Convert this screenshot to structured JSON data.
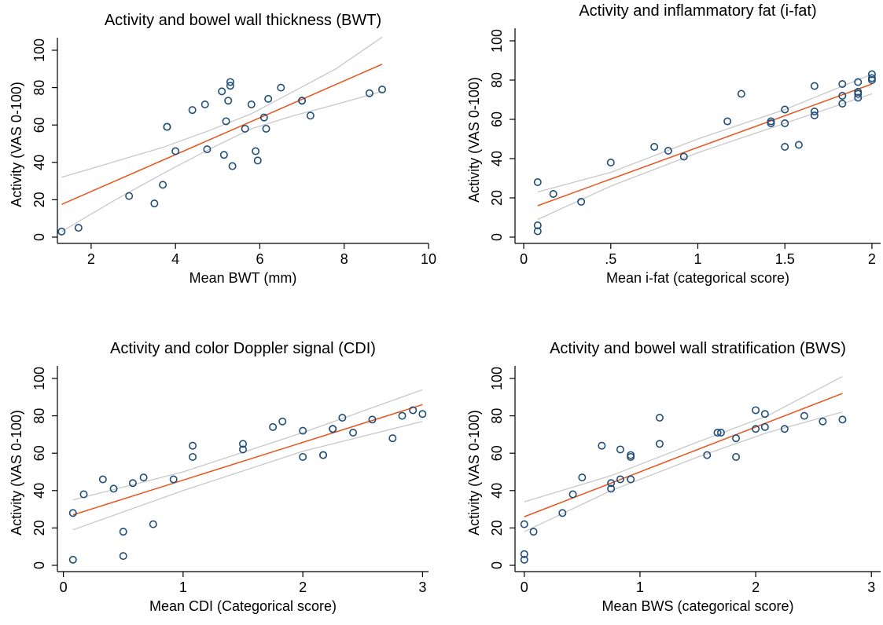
{
  "chart_data": [
    {
      "type": "scatter",
      "title": "Activity and bowel wall thickness (BWT)",
      "xlabel": "Mean BWT (mm)",
      "ylabel": "Activity (VAS 0-100)",
      "xlim": [
        1.2,
        10
      ],
      "ylim": [
        0,
        100
      ],
      "xticks": [
        2,
        4,
        6,
        8,
        10
      ],
      "xtick_labels": [
        "2",
        "4",
        "6",
        "8",
        "10"
      ],
      "yticks": [
        0,
        20,
        40,
        60,
        80,
        100
      ],
      "yticks_labels": [
        "0",
        "20",
        "40",
        "60",
        "80",
        "100"
      ],
      "grid": false,
      "points": [
        [
          1.3,
          3
        ],
        [
          1.7,
          5
        ],
        [
          2.9,
          22
        ],
        [
          3.5,
          18
        ],
        [
          3.7,
          28
        ],
        [
          3.8,
          59
        ],
        [
          3.8,
          59
        ],
        [
          4.0,
          46
        ],
        [
          4.4,
          68
        ],
        [
          4.7,
          71
        ],
        [
          4.75,
          47
        ],
        [
          5.1,
          78
        ],
        [
          5.15,
          44
        ],
        [
          5.2,
          62
        ],
        [
          5.25,
          73
        ],
        [
          5.3,
          81
        ],
        [
          5.3,
          83
        ],
        [
          5.35,
          38
        ],
        [
          5.65,
          58
        ],
        [
          5.8,
          71
        ],
        [
          5.9,
          46
        ],
        [
          5.95,
          41
        ],
        [
          6.1,
          64
        ],
        [
          6.15,
          58
        ],
        [
          6.2,
          74
        ],
        [
          6.5,
          80
        ],
        [
          7.0,
          73
        ],
        [
          7.0,
          73
        ],
        [
          7.2,
          65
        ],
        [
          8.6,
          77
        ],
        [
          8.9,
          79
        ]
      ],
      "fit_line": [
        [
          1.3,
          17.5
        ],
        [
          8.9,
          92.5
        ]
      ],
      "ci_upper": [
        [
          1.3,
          32
        ],
        [
          2.5,
          40
        ],
        [
          3.7,
          48
        ],
        [
          4.8,
          57
        ],
        [
          5.8,
          66
        ],
        [
          6.8,
          78
        ],
        [
          7.8,
          90
        ],
        [
          8.9,
          107
        ]
      ],
      "ci_lower": [
        [
          1.3,
          3
        ],
        [
          2.5,
          19
        ],
        [
          3.7,
          34
        ],
        [
          4.8,
          47
        ],
        [
          5.8,
          58
        ],
        [
          6.8,
          65
        ],
        [
          7.8,
          71
        ],
        [
          8.9,
          78
        ]
      ]
    },
    {
      "type": "scatter",
      "title": "Activity and inflammatory fat (i-fat)",
      "xlabel": "Mean i-fat (categorical score)",
      "ylabel": "Activity (VAS 0-100)",
      "xlim": [
        -0.05,
        2.05
      ],
      "ylim": [
        0,
        100
      ],
      "xticks": [
        0,
        0.5,
        1,
        1.5,
        2
      ],
      "xtick_labels": [
        "0",
        ".5",
        "1",
        "1.5",
        "2"
      ],
      "yticks": [
        0,
        20,
        40,
        60,
        80,
        100
      ],
      "yticks_labels": [
        "0",
        "20",
        "40",
        "60",
        "80",
        "100"
      ],
      "grid": false,
      "points": [
        [
          0.08,
          28
        ],
        [
          0.08,
          6
        ],
        [
          0.08,
          3
        ],
        [
          0.17,
          22
        ],
        [
          0.33,
          18
        ],
        [
          0.5,
          38
        ],
        [
          0.75,
          46
        ],
        [
          0.83,
          44
        ],
        [
          0.92,
          41
        ],
        [
          1.17,
          59
        ],
        [
          1.25,
          73
        ],
        [
          1.42,
          59
        ],
        [
          1.42,
          58
        ],
        [
          1.5,
          65
        ],
        [
          1.5,
          58
        ],
        [
          1.5,
          46
        ],
        [
          1.58,
          47
        ],
        [
          1.67,
          77
        ],
        [
          1.67,
          64
        ],
        [
          1.67,
          62
        ],
        [
          1.83,
          78
        ],
        [
          1.83,
          72
        ],
        [
          1.83,
          68
        ],
        [
          1.92,
          79
        ],
        [
          1.92,
          74
        ],
        [
          1.92,
          73
        ],
        [
          1.92,
          71
        ],
        [
          2.0,
          83
        ],
        [
          2.0,
          81
        ],
        [
          2.0,
          80
        ]
      ],
      "fit_line": [
        [
          0.08,
          16
        ],
        [
          2.0,
          78
        ]
      ],
      "ci_upper": [
        [
          0.08,
          23
        ],
        [
          0.5,
          33
        ],
        [
          1.0,
          50
        ],
        [
          1.5,
          65
        ],
        [
          2.0,
          83
        ]
      ],
      "ci_lower": [
        [
          0.08,
          9
        ],
        [
          0.5,
          26
        ],
        [
          1.0,
          43
        ],
        [
          1.5,
          58
        ],
        [
          2.0,
          73
        ]
      ]
    },
    {
      "type": "scatter",
      "title": "Activity and color Doppler signal (CDI)",
      "xlabel": "Mean CDI (Categorical score)",
      "ylabel": "Activity (VAS 0-100)",
      "xlim": [
        -0.05,
        3.05
      ],
      "ylim": [
        0,
        100
      ],
      "xticks": [
        0,
        1,
        2,
        3
      ],
      "xtick_labels": [
        "0",
        "1",
        "2",
        "3"
      ],
      "yticks": [
        0,
        20,
        40,
        60,
        80,
        100
      ],
      "yticks_labels": [
        "0",
        "20",
        "40",
        "60",
        "80",
        "100"
      ],
      "grid": false,
      "points": [
        [
          0.08,
          28
        ],
        [
          0.08,
          3
        ],
        [
          0.17,
          38
        ],
        [
          0.33,
          46
        ],
        [
          0.42,
          41
        ],
        [
          0.5,
          18
        ],
        [
          0.5,
          5
        ],
        [
          0.58,
          44
        ],
        [
          0.67,
          47
        ],
        [
          0.75,
          22
        ],
        [
          0.92,
          46
        ],
        [
          1.08,
          64
        ],
        [
          1.08,
          58
        ],
        [
          1.5,
          65
        ],
        [
          1.5,
          62
        ],
        [
          1.75,
          74
        ],
        [
          1.83,
          77
        ],
        [
          2.0,
          72
        ],
        [
          2.0,
          58
        ],
        [
          2.17,
          59
        ],
        [
          2.17,
          59
        ],
        [
          2.25,
          73
        ],
        [
          2.25,
          73
        ],
        [
          2.33,
          79
        ],
        [
          2.42,
          71
        ],
        [
          2.58,
          78
        ],
        [
          2.75,
          68
        ],
        [
          2.83,
          80
        ],
        [
          2.92,
          83
        ],
        [
          3.0,
          81
        ]
      ],
      "fit_line": [
        [
          0.08,
          27
        ],
        [
          3.0,
          86
        ]
      ],
      "ci_upper": [
        [
          0.08,
          35
        ],
        [
          1.0,
          50
        ],
        [
          2.0,
          71
        ],
        [
          3.0,
          94
        ]
      ],
      "ci_lower": [
        [
          0.08,
          19
        ],
        [
          1.0,
          40
        ],
        [
          2.0,
          61
        ],
        [
          3.0,
          77
        ]
      ]
    },
    {
      "type": "scatter",
      "title": "Activity and bowel wall stratification (BWS)",
      "xlabel": "Mean BWS (categorical score)",
      "ylabel": "Activity (VAS 0-100)",
      "xlim": [
        -0.08,
        3.08
      ],
      "ylim": [
        0,
        100
      ],
      "xticks": [
        0,
        1,
        2,
        3
      ],
      "xtick_labels": [
        "0",
        "1",
        "2",
        "3"
      ],
      "yticks": [
        0,
        20,
        40,
        60,
        80,
        100
      ],
      "yticks_labels": [
        "0",
        "20",
        "40",
        "60",
        "80",
        "100"
      ],
      "grid": false,
      "points": [
        [
          0.0,
          22
        ],
        [
          0.0,
          6
        ],
        [
          0.0,
          3
        ],
        [
          0.08,
          18
        ],
        [
          0.33,
          28
        ],
        [
          0.42,
          38
        ],
        [
          0.5,
          47
        ],
        [
          0.67,
          64
        ],
        [
          0.75,
          44
        ],
        [
          0.75,
          41
        ],
        [
          0.83,
          62
        ],
        [
          0.83,
          46
        ],
        [
          0.92,
          59
        ],
        [
          0.92,
          58
        ],
        [
          0.92,
          46
        ],
        [
          1.17,
          79
        ],
        [
          1.17,
          65
        ],
        [
          1.58,
          59
        ],
        [
          1.67,
          71
        ],
        [
          1.7,
          71
        ],
        [
          1.83,
          68
        ],
        [
          1.83,
          58
        ],
        [
          2.0,
          83
        ],
        [
          2.0,
          73
        ],
        [
          2.08,
          81
        ],
        [
          2.08,
          74
        ],
        [
          2.25,
          73
        ],
        [
          2.42,
          80
        ],
        [
          2.58,
          77
        ],
        [
          2.75,
          78
        ]
      ],
      "fit_line": [
        [
          0.0,
          26
        ],
        [
          2.75,
          92
        ]
      ],
      "ci_upper": [
        [
          0.0,
          34
        ],
        [
          0.75,
          48
        ],
        [
          1.5,
          66
        ],
        [
          2.1,
          80
        ],
        [
          2.75,
          101
        ]
      ],
      "ci_lower": [
        [
          0.0,
          18
        ],
        [
          0.75,
          40
        ],
        [
          1.5,
          58
        ],
        [
          2.1,
          71
        ],
        [
          2.75,
          82
        ]
      ]
    }
  ],
  "colors": {
    "point_stroke": "#1f4e79",
    "fit_line": "#e8541e",
    "ci_line": "#c8c8c8",
    "axis": "#000000"
  }
}
